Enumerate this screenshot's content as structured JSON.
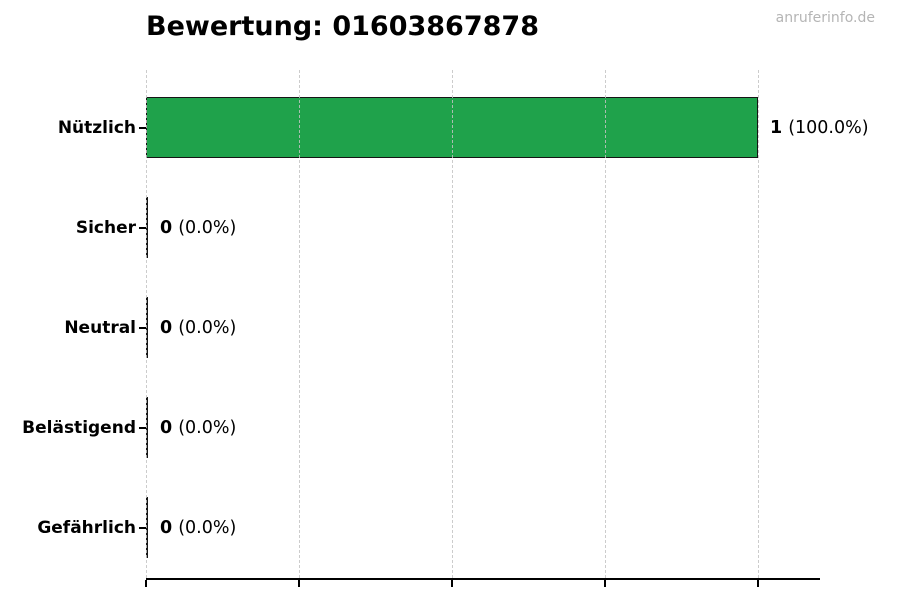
{
  "page": {
    "title": "Bewertung: 01603867878",
    "watermark": "anruferinfo.de"
  },
  "chart_data": {
    "type": "bar",
    "orientation": "horizontal",
    "title": "Bewertung: 01603867878",
    "categories": [
      "Nützlich",
      "Sicher",
      "Neutral",
      "Belästigend",
      "Gefährlich"
    ],
    "values": [
      1,
      0,
      0,
      0,
      0
    ],
    "percentages": [
      100.0,
      0.0,
      0.0,
      0.0,
      0.0
    ],
    "value_labels": [
      "1 (100.0%)",
      "0 (0.0%)",
      "0 (0.0%)",
      "0 (0.0%)",
      "0 (0.0%)"
    ],
    "xlim": [
      0,
      1.1
    ],
    "x_ticks": [
      0,
      0.25,
      0.5,
      0.75,
      1.0
    ],
    "x_tick_labels_visible": false,
    "grid": true,
    "legend": false,
    "bar_color": "#1fa24b",
    "bar_edge_color": "#151515",
    "gridline_color": "#c3c3c3",
    "watermark": "anruferinfo.de",
    "rows": [
      {
        "label": "Nützlich",
        "value": "1",
        "pct": "(100.0%)"
      },
      {
        "label": "Sicher",
        "value": "0",
        "pct": "(0.0%)"
      },
      {
        "label": "Neutral",
        "value": "0",
        "pct": "(0.0%)"
      },
      {
        "label": "Belästigend",
        "value": "0",
        "pct": "(0.0%)"
      },
      {
        "label": "Gefährlich",
        "value": "0",
        "pct": "(0.0%)"
      }
    ]
  }
}
